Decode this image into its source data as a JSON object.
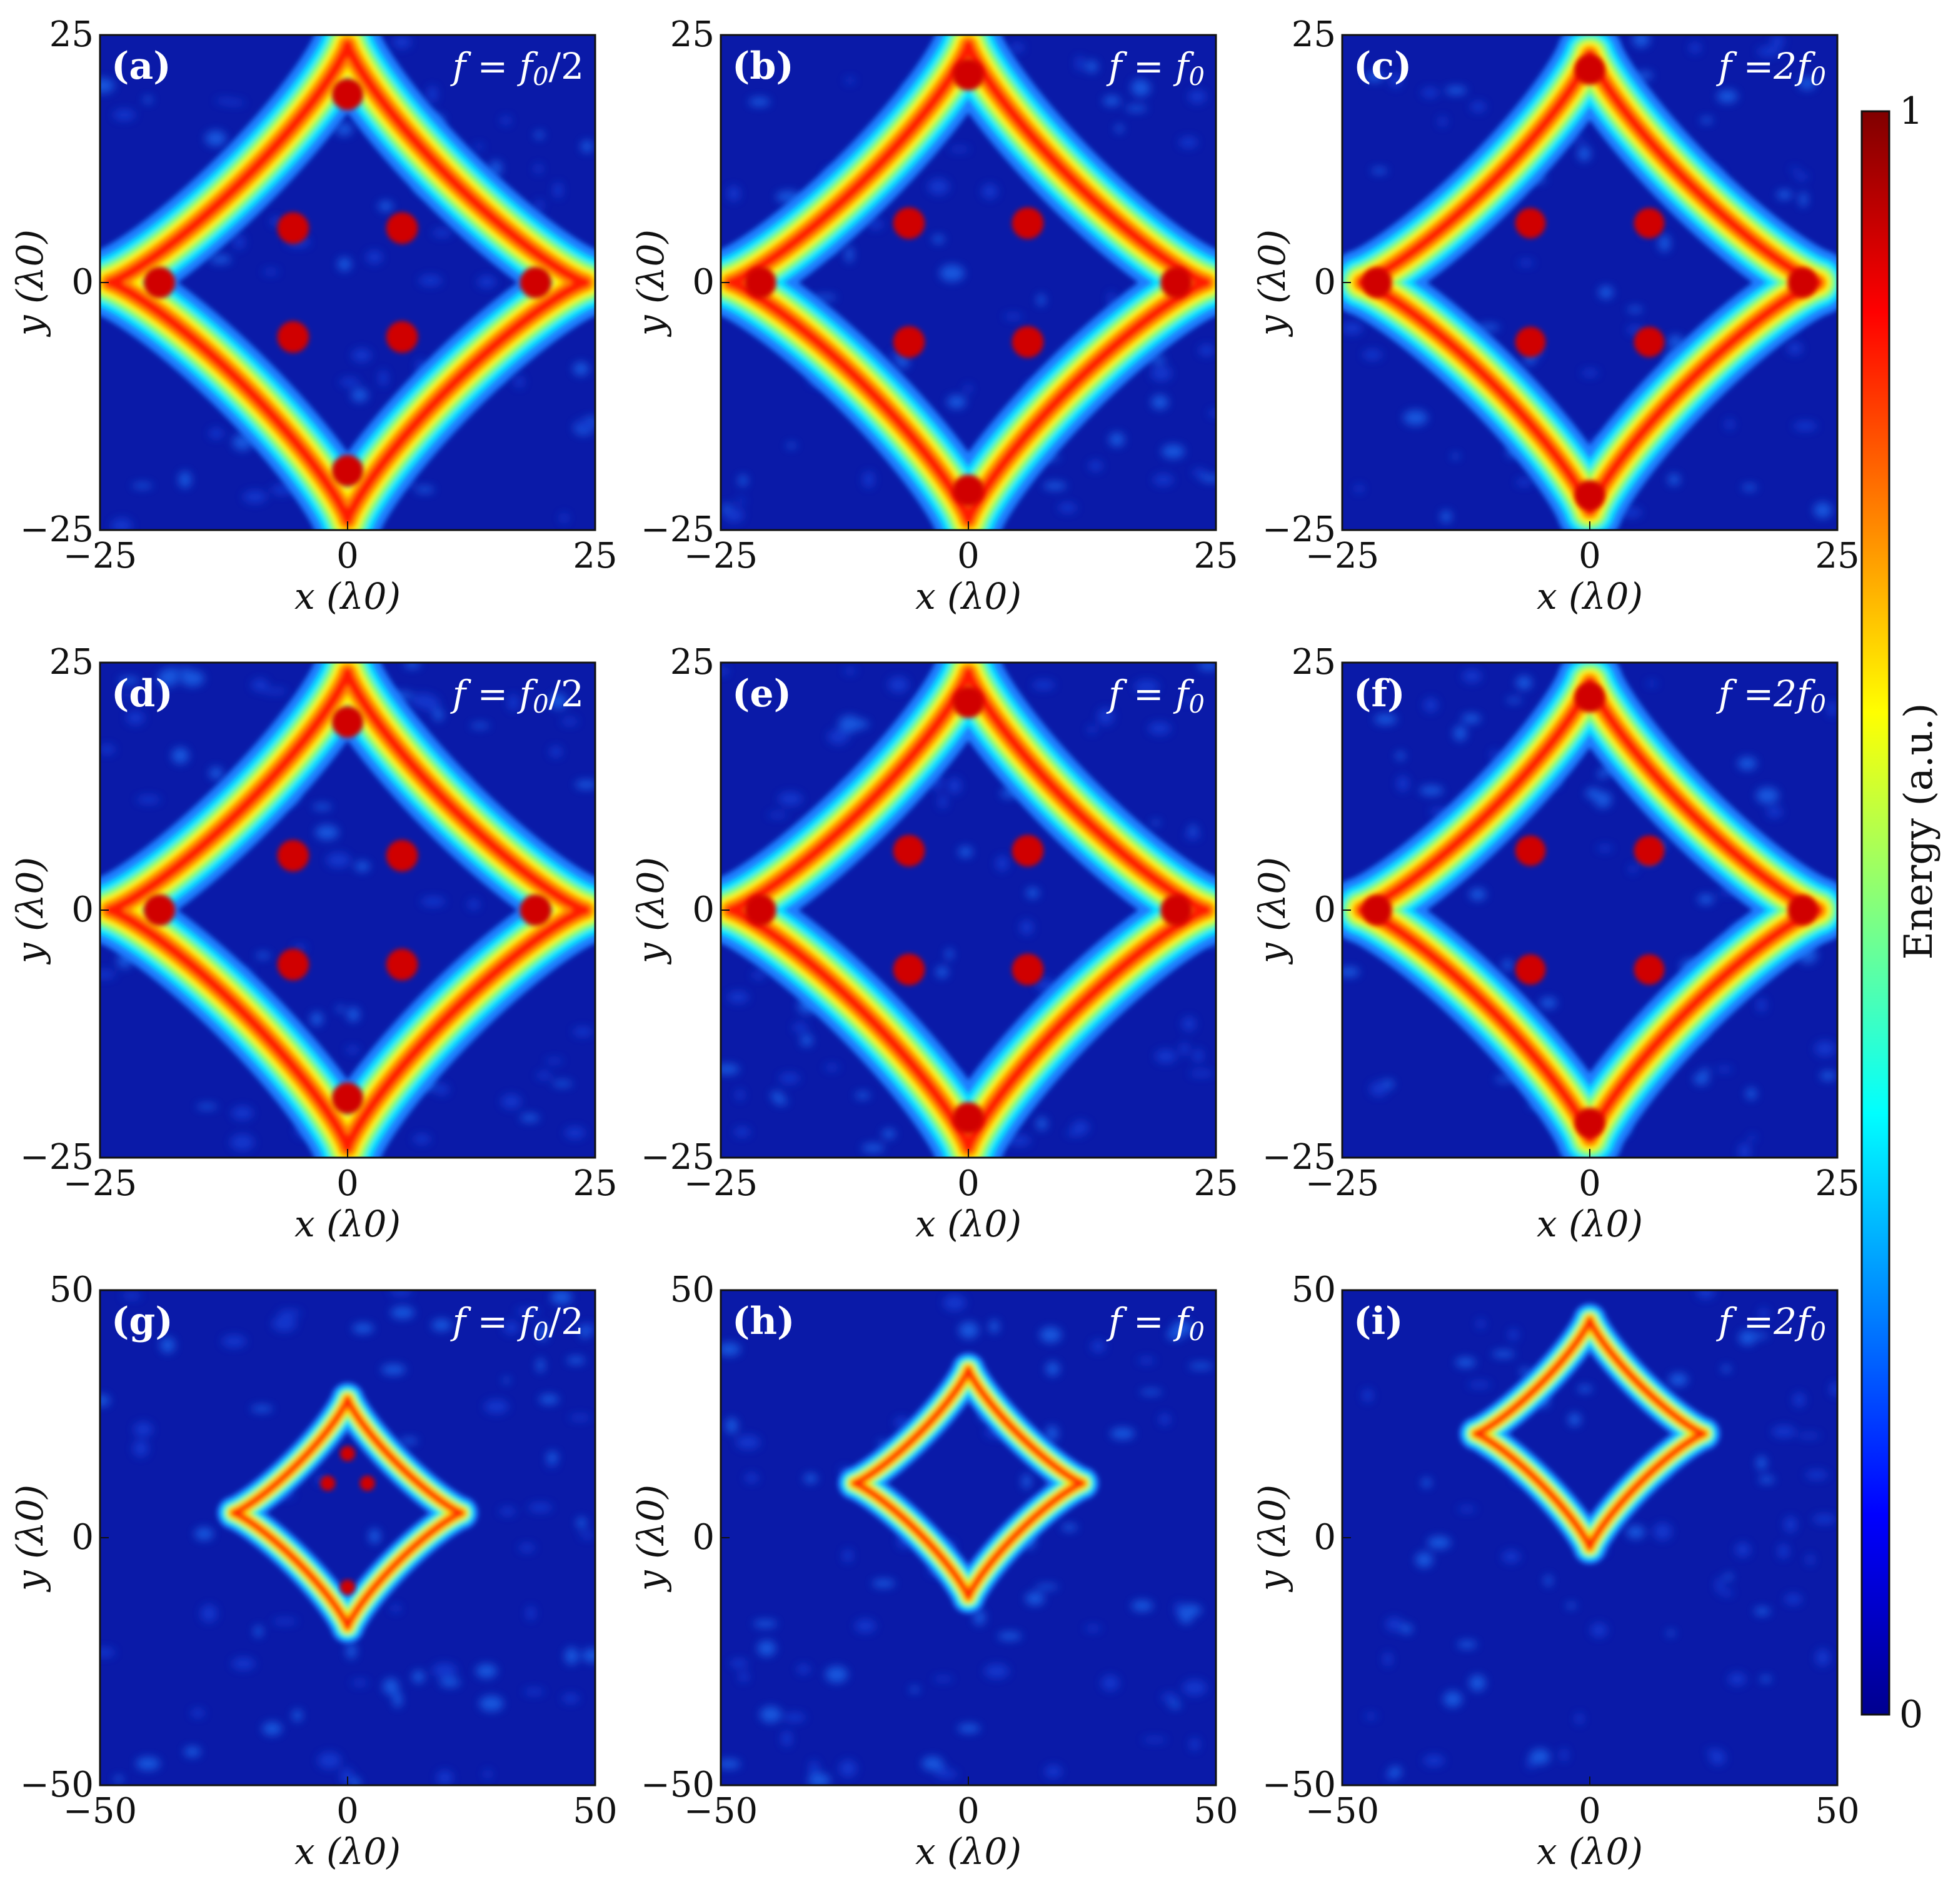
{
  "chart_data": [
    {
      "type": "heatmap",
      "panel": "(a)",
      "annotation": "f = f0/2",
      "freq": {
        "var": "f",
        "eq": "=",
        "base": "f",
        "sub": "0",
        "suffix": "/2"
      },
      "xlabel": "x (λ0)",
      "ylabel": "y (λ0)",
      "xlim": [
        -25,
        25
      ],
      "ylim": [
        -25,
        25
      ],
      "xticks": [
        "−25",
        "0",
        "25"
      ],
      "yticks": [
        "−25",
        "0",
        "25"
      ],
      "star": {
        "center": [
          0,
          0
        ],
        "half_span": 24,
        "arm_exponent": 0.75,
        "hot_spots": [
          [
            0,
            19
          ],
          [
            0,
            -19
          ],
          [
            19,
            0
          ],
          [
            -19,
            0
          ],
          [
            5.5,
            5.5
          ],
          [
            -5.5,
            5.5
          ],
          [
            5.5,
            -5.5
          ],
          [
            -5.5,
            -5.5
          ]
        ]
      }
    },
    {
      "type": "heatmap",
      "panel": "(b)",
      "annotation": "f = f0",
      "freq": {
        "var": "f",
        "eq": "=",
        "base": "f",
        "sub": "0",
        "suffix": ""
      },
      "xlabel": "x (λ0)",
      "ylabel": "y (λ0)",
      "xlim": [
        -25,
        25
      ],
      "ylim": [
        -25,
        25
      ],
      "xticks": [
        "−25",
        "0",
        "25"
      ],
      "yticks": [
        "−25",
        "0",
        "25"
      ],
      "star": {
        "center": [
          0,
          0
        ],
        "half_span": 24,
        "arm_exponent": 0.75,
        "hot_spots": [
          [
            0,
            21
          ],
          [
            0,
            -21
          ],
          [
            21,
            0
          ],
          [
            -21,
            0
          ],
          [
            6,
            6
          ],
          [
            -6,
            6
          ],
          [
            6,
            -6
          ],
          [
            -6,
            -6
          ]
        ]
      }
    },
    {
      "type": "heatmap",
      "panel": "(c)",
      "annotation": "f =2f0",
      "freq": {
        "var": "f",
        "eq": "=2",
        "base": "f",
        "sub": "0",
        "suffix": ""
      },
      "xlabel": "x (λ0)",
      "ylabel": "y (λ0)",
      "xlim": [
        -25,
        25
      ],
      "ylim": [
        -25,
        25
      ],
      "xticks": [
        "−25",
        "0",
        "25"
      ],
      "yticks": [
        "−25",
        "0",
        "25"
      ],
      "star": {
        "center": [
          0,
          0
        ],
        "half_span": 23,
        "arm_exponent": 0.75,
        "hot_spots": [
          [
            0,
            21.5
          ],
          [
            0,
            -21.5
          ],
          [
            21.5,
            0
          ],
          [
            -21.5,
            0
          ],
          [
            6,
            6
          ],
          [
            -6,
            6
          ],
          [
            6,
            -6
          ],
          [
            -6,
            -6
          ]
        ]
      }
    },
    {
      "type": "heatmap",
      "panel": "(d)",
      "annotation": "f = f0/2",
      "freq": {
        "var": "f",
        "eq": "=",
        "base": "f",
        "sub": "0",
        "suffix": "/2"
      },
      "xlabel": "x (λ0)",
      "ylabel": "y (λ0)",
      "xlim": [
        -25,
        25
      ],
      "ylim": [
        -25,
        25
      ],
      "xticks": [
        "−25",
        "0",
        "25"
      ],
      "yticks": [
        "−25",
        "0",
        "25"
      ],
      "star": {
        "center": [
          0,
          0
        ],
        "half_span": 24,
        "arm_exponent": 0.75,
        "hot_spots": [
          [
            0,
            19
          ],
          [
            0,
            -19
          ],
          [
            19,
            0
          ],
          [
            -19,
            0
          ],
          [
            5.5,
            5.5
          ],
          [
            -5.5,
            5.5
          ],
          [
            5.5,
            -5.5
          ],
          [
            -5.5,
            -5.5
          ]
        ]
      }
    },
    {
      "type": "heatmap",
      "panel": "(e)",
      "annotation": "f = f0",
      "freq": {
        "var": "f",
        "eq": "=",
        "base": "f",
        "sub": "0",
        "suffix": ""
      },
      "xlabel": "x (λ0)",
      "ylabel": "y (λ0)",
      "xlim": [
        -25,
        25
      ],
      "ylim": [
        -25,
        25
      ],
      "xticks": [
        "−25",
        "0",
        "25"
      ],
      "yticks": [
        "−25",
        "0",
        "25"
      ],
      "star": {
        "center": [
          0,
          0
        ],
        "half_span": 24,
        "arm_exponent": 0.75,
        "hot_spots": [
          [
            0,
            21
          ],
          [
            0,
            -21
          ],
          [
            21,
            0
          ],
          [
            -21,
            0
          ],
          [
            6,
            6
          ],
          [
            -6,
            6
          ],
          [
            6,
            -6
          ],
          [
            -6,
            -6
          ]
        ]
      }
    },
    {
      "type": "heatmap",
      "panel": "(f)",
      "annotation": "f =2f0",
      "freq": {
        "var": "f",
        "eq": "=2",
        "base": "f",
        "sub": "0",
        "suffix": ""
      },
      "xlabel": "x (λ0)",
      "ylabel": "y (λ0)",
      "xlim": [
        -25,
        25
      ],
      "ylim": [
        -25,
        25
      ],
      "xticks": [
        "−25",
        "0",
        "25"
      ],
      "yticks": [
        "−25",
        "0",
        "25"
      ],
      "star": {
        "center": [
          0,
          0
        ],
        "half_span": 23,
        "arm_exponent": 0.75,
        "hot_spots": [
          [
            0,
            21.5
          ],
          [
            0,
            -21.5
          ],
          [
            21.5,
            0
          ],
          [
            -21.5,
            0
          ],
          [
            6,
            6
          ],
          [
            -6,
            6
          ],
          [
            6,
            -6
          ],
          [
            -6,
            -6
          ]
        ]
      }
    },
    {
      "type": "heatmap",
      "panel": "(g)",
      "annotation": "f = f0/2",
      "freq": {
        "var": "f",
        "eq": "=",
        "base": "f",
        "sub": "0",
        "suffix": "/2"
      },
      "xlabel": "x (λ0)",
      "ylabel": "y (λ0)",
      "xlim": [
        -50,
        50
      ],
      "ylim": [
        -50,
        50
      ],
      "xticks": [
        "−50",
        "0",
        "50"
      ],
      "yticks": [
        "−50",
        "0",
        "50"
      ],
      "star": {
        "center": [
          0,
          5
        ],
        "half_span": 23,
        "arm_exponent": 0.75,
        "hot_spots": [
          [
            0,
            17
          ],
          [
            0,
            -10
          ],
          [
            4,
            11
          ],
          [
            -4,
            11
          ]
        ]
      }
    },
    {
      "type": "heatmap",
      "panel": "(h)",
      "annotation": "f = f0",
      "freq": {
        "var": "f",
        "eq": "=",
        "base": "f",
        "sub": "0",
        "suffix": ""
      },
      "xlabel": "x (λ0)",
      "ylabel": "y (λ0)",
      "xlim": [
        -50,
        50
      ],
      "ylim": [
        -50,
        50
      ],
      "xticks": [
        "−50",
        "0",
        "50"
      ],
      "yticks": [
        "−50",
        "0",
        "50"
      ],
      "star": {
        "center": [
          0,
          11
        ],
        "half_span": 23,
        "arm_exponent": 0.75,
        "hot_spots": []
      }
    },
    {
      "type": "heatmap",
      "panel": "(i)",
      "annotation": "f =2f0",
      "freq": {
        "var": "f",
        "eq": "=2",
        "base": "f",
        "sub": "0",
        "suffix": ""
      },
      "xlabel": "x (λ0)",
      "ylabel": "y (λ0)",
      "xlim": [
        -50,
        50
      ],
      "ylim": [
        -50,
        50
      ],
      "xticks": [
        "−50",
        "0",
        "50"
      ],
      "yticks": [
        "−50",
        "0",
        "50"
      ],
      "star": {
        "center": [
          0,
          21
        ],
        "half_span": 23,
        "arm_exponent": 0.75,
        "hot_spots": []
      }
    }
  ],
  "colorbar": {
    "label": "Energy (a.u.)",
    "min_label": "0",
    "max_label": "1",
    "min": 0,
    "max": 1,
    "colormap": "jet",
    "colors": [
      "#00008f",
      "#0000ff",
      "#0080ff",
      "#00ffff",
      "#80ff80",
      "#ffff00",
      "#ff8000",
      "#ff0000",
      "#800000"
    ],
    "background_color": "#0a1aa8"
  }
}
